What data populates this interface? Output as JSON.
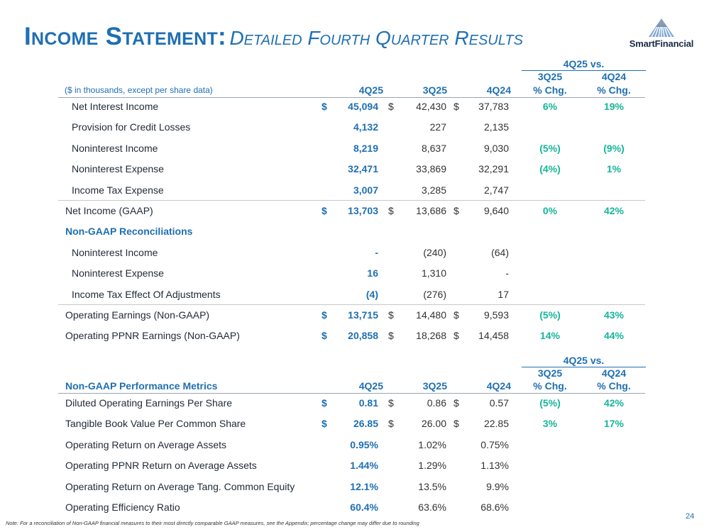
{
  "title": {
    "main": "Income Statement:",
    "sub": "Detailed Fourth Quarter Results"
  },
  "logo": {
    "name": "SmartFinancial"
  },
  "table1": {
    "header": {
      "vs_label": "4Q25 vs.",
      "units_note": "($ in thousands, except per share data)",
      "col_4q25": "4Q25",
      "col_3q25": "3Q25",
      "col_4q24": "4Q24",
      "chg1_top": "3Q25",
      "chg1_bottom": "% Chg.",
      "chg2_top": "4Q24",
      "chg2_bottom": "% Chg."
    },
    "rows": [
      {
        "label": "Net Interest Income",
        "d1": "$",
        "v1": "45,094",
        "d2": "$",
        "v2": "42,430",
        "d3": "$",
        "v3": "37,783",
        "c1": "6%",
        "c2": "19%"
      },
      {
        "label": "Provision for Credit Losses",
        "d1": "",
        "v1": "4,132",
        "d2": "",
        "v2": "227",
        "d3": "",
        "v3": "2,135",
        "c1": "",
        "c2": ""
      },
      {
        "label": "Noninterest Income",
        "d1": "",
        "v1": "8,219",
        "d2": "",
        "v2": "8,637",
        "d3": "",
        "v3": "9,030",
        "c1": "(5%)",
        "c2": "(9%)"
      },
      {
        "label": "Noninterest Expense",
        "d1": "",
        "v1": "32,471",
        "d2": "",
        "v2": "33,869",
        "d3": "",
        "v3": "32,291",
        "c1": "(4%)",
        "c2": "1%"
      },
      {
        "label": "Income Tax Expense",
        "d1": "",
        "v1": "3,007",
        "d2": "",
        "v2": "3,285",
        "d3": "",
        "v3": "2,747",
        "c1": "",
        "c2": ""
      },
      {
        "label": "Net Income (GAAP)",
        "d1": "$",
        "v1": "13,703",
        "d2": "$",
        "v2": "13,686",
        "d3": "$",
        "v3": "9,640",
        "c1": "0%",
        "c2": "42%"
      },
      {
        "label": "Non-GAAP Reconciliations",
        "d1": "",
        "v1": "",
        "d2": "",
        "v2": "",
        "d3": "",
        "v3": "",
        "c1": "",
        "c2": ""
      },
      {
        "label": "Noninterest Income",
        "d1": "",
        "v1": "-",
        "d2": "",
        "v2": "(240)",
        "d3": "",
        "v3": "(64)",
        "c1": "",
        "c2": ""
      },
      {
        "label": "Noninterest Expense",
        "d1": "",
        "v1": "16",
        "d2": "",
        "v2": "1,310",
        "d3": "",
        "v3": "-",
        "c1": "",
        "c2": ""
      },
      {
        "label": "Income Tax Effect Of Adjustments",
        "d1": "",
        "v1": "(4)",
        "d2": "",
        "v2": "(276)",
        "d3": "",
        "v3": "17",
        "c1": "",
        "c2": ""
      },
      {
        "label": "Operating Earnings (Non-GAAP)",
        "d1": "$",
        "v1": "13,715",
        "d2": "$",
        "v2": "14,480",
        "d3": "$",
        "v3": "9,593",
        "c1": "(5%)",
        "c2": "43%"
      },
      {
        "label": "Operating PPNR Earnings (Non-GAAP)",
        "d1": "$",
        "v1": "20,858",
        "d2": "$",
        "v2": "18,268",
        "d3": "$",
        "v3": "14,458",
        "c1": "14%",
        "c2": "44%"
      }
    ]
  },
  "table2": {
    "header": {
      "vs_label": "4Q25 vs.",
      "title": "Non-GAAP Performance Metrics",
      "col_4q25": "4Q25",
      "col_3q25": "3Q25",
      "col_4q24": "4Q24",
      "chg1_top": "3Q25",
      "chg1_bottom": "% Chg.",
      "chg2_top": "4Q24",
      "chg2_bottom": "% Chg."
    },
    "rows": [
      {
        "label": "Diluted Operating Earnings Per Share",
        "d1": "$",
        "v1": "0.81",
        "d2": "$",
        "v2": "0.86",
        "d3": "$",
        "v3": "0.57",
        "c1": "(5%)",
        "c2": "42%"
      },
      {
        "label": "Tangible Book Value Per Common Share",
        "d1": "$",
        "v1": "26.85",
        "d2": "$",
        "v2": "26.00",
        "d3": "$",
        "v3": "22.85",
        "c1": "3%",
        "c2": "17%"
      },
      {
        "label": "Operating Return on Average Assets",
        "d1": "",
        "v1": "0.95%",
        "d2": "",
        "v2": "1.02%",
        "d3": "",
        "v3": "0.75%",
        "c1": "",
        "c2": ""
      },
      {
        "label": "Operating PPNR Return on Average Assets",
        "d1": "",
        "v1": "1.44%",
        "d2": "",
        "v2": "1.29%",
        "d3": "",
        "v3": "1.13%",
        "c1": "",
        "c2": ""
      },
      {
        "label": "Operating Return on Average Tang. Common Equity",
        "d1": "",
        "v1": "12.1%",
        "d2": "",
        "v2": "13.5%",
        "d3": "",
        "v3": "9.9%",
        "c1": "",
        "c2": ""
      },
      {
        "label": "Operating Efficiency Ratio",
        "d1": "",
        "v1": "60.4%",
        "d2": "",
        "v2": "63.6%",
        "d3": "",
        "v3": "68.6%",
        "c1": "",
        "c2": ""
      }
    ]
  },
  "footer": {
    "note": "Note: For a reconciliation of Non-GAAP financial measures to their most directly comparable GAAP measures, see the Appendix; percentage change may differ due to rounding",
    "page": "24"
  },
  "colors": {
    "accent": "#1f6fb2",
    "positive": "#16b59a",
    "text": "#1f2a36"
  }
}
